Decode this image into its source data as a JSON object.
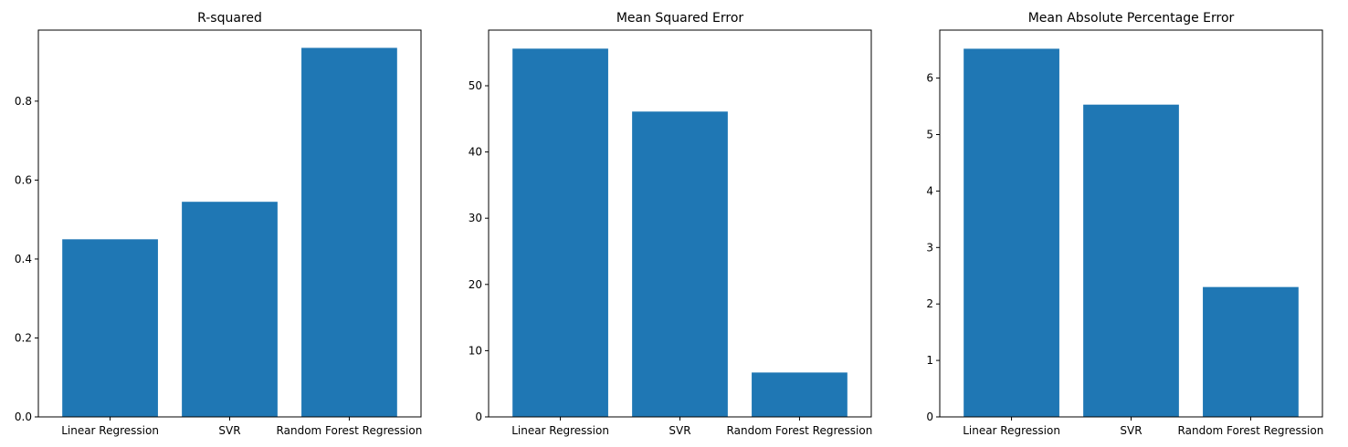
{
  "chart_data": [
    {
      "type": "bar",
      "title": "R-squared",
      "categories": [
        "Linear Regression",
        "SVR",
        "Random Forest Regression"
      ],
      "values": [
        0.45,
        0.545,
        0.935
      ],
      "ylim": [
        0,
        0.98
      ],
      "yticks": [
        0.0,
        0.2,
        0.4,
        0.6,
        0.8
      ],
      "ytick_labels": [
        "0.0",
        "0.2",
        "0.4",
        "0.6",
        "0.8"
      ],
      "xlabel": "",
      "ylabel": "",
      "grid": false,
      "bar_color": "#1f77b4"
    },
    {
      "type": "bar",
      "title": "Mean Squared Error",
      "categories": [
        "Linear Regression",
        "SVR",
        "Random Forest Regression"
      ],
      "values": [
        55.6,
        46.1,
        6.7
      ],
      "ylim": [
        0,
        58.4
      ],
      "yticks": [
        0,
        10,
        20,
        30,
        40,
        50
      ],
      "ytick_labels": [
        "0",
        "10",
        "20",
        "30",
        "40",
        "50"
      ],
      "xlabel": "",
      "ylabel": "",
      "grid": false,
      "bar_color": "#1f77b4"
    },
    {
      "type": "bar",
      "title": "Mean Absolute Percentage Error",
      "categories": [
        "Linear Regression",
        "SVR",
        "Random Forest Regression"
      ],
      "values": [
        6.52,
        5.53,
        2.3
      ],
      "ylim": [
        0,
        6.85
      ],
      "yticks": [
        0,
        1,
        2,
        3,
        4,
        5,
        6
      ],
      "ytick_labels": [
        "0",
        "1",
        "2",
        "3",
        "4",
        "5",
        "6"
      ],
      "xlabel": "",
      "ylabel": "",
      "grid": false,
      "bar_color": "#1f77b4"
    }
  ]
}
